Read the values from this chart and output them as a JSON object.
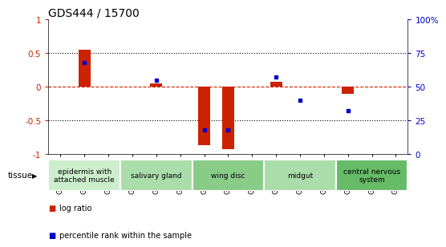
{
  "title": "GDS444 / 15700",
  "samples": [
    "GSM4490",
    "GSM4491",
    "GSM4492",
    "GSM4508",
    "GSM4515",
    "GSM4520",
    "GSM4524",
    "GSM4530",
    "GSM4534",
    "GSM4541",
    "GSM4547",
    "GSM4552",
    "GSM4559",
    "GSM4564",
    "GSM4568"
  ],
  "log_ratio": [
    0.0,
    0.55,
    0.0,
    0.0,
    0.05,
    0.0,
    -0.87,
    -0.93,
    0.0,
    0.07,
    0.0,
    0.0,
    -0.1,
    0.0,
    0.0
  ],
  "percentile": [
    null,
    68,
    null,
    null,
    55,
    null,
    18,
    18,
    null,
    57,
    40,
    null,
    32,
    null,
    null
  ],
  "ylim": [
    -1,
    1
  ],
  "y_left_ticks": [
    1,
    0.5,
    0,
    -0.5,
    -1
  ],
  "y_left_labels": [
    "1",
    "0.5",
    "0",
    "-0.5",
    "-1"
  ],
  "y_right_ticks": [
    100,
    75,
    50,
    25,
    0
  ],
  "y_right_labels": [
    "100%",
    "75",
    "50",
    "25",
    "0"
  ],
  "hline_dotted": [
    0.5,
    -0.5
  ],
  "bar_color": "#cc2200",
  "dot_color": "#0000cc",
  "tissue_groups": [
    {
      "label": "epidermis with\nattached muscle",
      "start": 0,
      "end": 2,
      "color": "#cceecc"
    },
    {
      "label": "salivary gland",
      "start": 3,
      "end": 5,
      "color": "#aaddaa"
    },
    {
      "label": "wing disc",
      "start": 6,
      "end": 8,
      "color": "#88cc88"
    },
    {
      "label": "midgut",
      "start": 9,
      "end": 11,
      "color": "#aaddaa"
    },
    {
      "label": "central nervous\nsystem",
      "start": 12,
      "end": 14,
      "color": "#66bb66"
    }
  ],
  "legend_log_ratio_color": "#cc2200",
  "legend_percentile_color": "#0000cc",
  "bg_color": "#ffffff",
  "title_fontsize": 10,
  "tick_label_fontsize": 6.5,
  "tissue_fontsize": 6.5,
  "bar_width": 0.5
}
